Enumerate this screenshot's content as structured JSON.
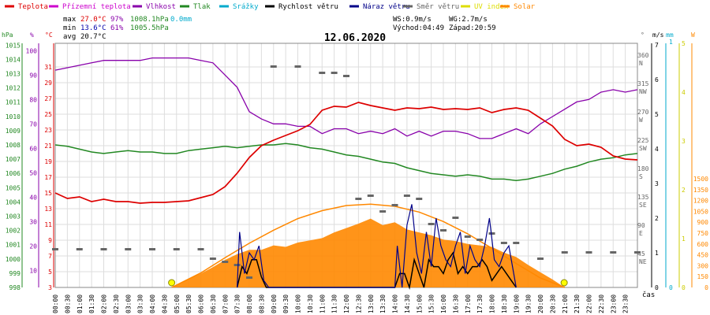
{
  "legend": [
    {
      "label": "Teplota",
      "color": "#dd0000"
    },
    {
      "label": "Přízemní teplota",
      "color": "#cc00cc"
    },
    {
      "label": "Vlhkost",
      "color": "#8800aa"
    },
    {
      "label": "Tlak",
      "color": "#228822"
    },
    {
      "label": "Srážky",
      "color": "#00aacc"
    },
    {
      "label": "Rychlost větru",
      "color": "#000000"
    },
    {
      "label": "Náraz větru",
      "color": "#000088"
    },
    {
      "label": "Směr větru",
      "color": "#666666"
    },
    {
      "label": "UV index",
      "color": "#dddd00"
    },
    {
      "label": "Solar",
      "color": "#ff8800"
    }
  ],
  "stats": {
    "max_label": "max",
    "max_temp": "27.0°C",
    "max_hum": "97%",
    "max_press": "1008.1hPa",
    "max_rain": "0.0mm",
    "min_label": "min",
    "min_temp": "13.6°C",
    "min_hum": "61%",
    "min_press": "1005.5hPa",
    "avg_label": "avg",
    "avg_temp": "20.7°C"
  },
  "wind_info": {
    "ws": "WS:0.9m/s",
    "wg": "WG:2.7m/s",
    "sunrise": "Východ:04:49",
    "sunset": "Západ:20:59"
  },
  "chart_data": {
    "type": "line",
    "title": "12.06.2020",
    "x_label": "čas",
    "x_ticks": [
      "00:00",
      "00:30",
      "01:00",
      "01:30",
      "02:00",
      "02:30",
      "03:00",
      "03:30",
      "04:00",
      "04:30",
      "05:00",
      "05:30",
      "06:00",
      "06:30",
      "07:00",
      "07:30",
      "08:00",
      "08:30",
      "09:00",
      "09:30",
      "10:00",
      "10:30",
      "11:00",
      "11:30",
      "12:00",
      "12:30",
      "13:00",
      "13:30",
      "14:00",
      "14:30",
      "15:00",
      "15:30",
      "16:00",
      "16:30",
      "17:00",
      "17:30",
      "18:00",
      "18:30",
      "19:00",
      "19:30",
      "20:00",
      "20:30",
      "21:00",
      "21:30",
      "22:00",
      "22:30",
      "23:00",
      "23:30"
    ],
    "axes": {
      "pressure": {
        "unit": "hPa",
        "ticks": [
          "998",
          "999",
          "1000",
          "1001",
          "1002",
          "1003",
          "1004",
          "1005",
          "1006",
          "1007",
          "1008",
          "1009",
          "1010",
          "1011",
          "1012",
          "1013",
          "1014",
          "1015"
        ]
      },
      "humidity": {
        "unit": "%",
        "ticks": [
          "10",
          "20",
          "30",
          "40",
          "50",
          "60",
          "70",
          "80",
          "90",
          "100"
        ]
      },
      "temperature": {
        "unit": "°C",
        "ticks": [
          "3",
          "5",
          "7",
          "9",
          "11",
          "13",
          "15",
          "17",
          "19",
          "21",
          "23",
          "25",
          "27",
          "29",
          "31"
        ]
      },
      "wind_dir": {
        "unit": "°",
        "ticks": [
          "45 NE",
          "90 E",
          "135 SE",
          "180 S",
          "225 SW",
          "270 W",
          "315 NW",
          "360 N"
        ]
      },
      "wind_speed": {
        "unit": "m/s",
        "ticks": [
          "0",
          "1",
          "2",
          "3",
          "4",
          "5",
          "6",
          "7"
        ]
      },
      "rain": {
        "unit": "mm",
        "ticks": [
          "0",
          "1"
        ]
      },
      "uv": {
        "ticks": [
          "0",
          "1",
          "2",
          "3",
          "4",
          "5"
        ]
      },
      "solar": {
        "unit": "W",
        "ticks": [
          "0",
          "150",
          "300",
          "450",
          "600",
          "750",
          "900",
          "1050",
          "1200",
          "1350",
          "1500"
        ]
      }
    },
    "series": [
      {
        "name": "Teplota",
        "axis": "temperature",
        "x": [
          0,
          0.5,
          1,
          1.5,
          2,
          2.5,
          3,
          3.5,
          4,
          4.5,
          5,
          5.5,
          6,
          6.5,
          7,
          7.5,
          8,
          8.5,
          9,
          9.5,
          10,
          10.5,
          11,
          11.5,
          12,
          12.5,
          13,
          13.5,
          14,
          14.5,
          15,
          15.5,
          16,
          16.5,
          17,
          17.5,
          18,
          18.5,
          19,
          19.5,
          20,
          20.5,
          21,
          21.5,
          22,
          22.5,
          23,
          23.5,
          24
        ],
        "y": [
          15.0,
          14.3,
          14.5,
          13.9,
          14.2,
          13.9,
          13.9,
          13.7,
          13.8,
          13.8,
          13.9,
          14.0,
          14.4,
          14.8,
          15.8,
          17.5,
          19.5,
          21.0,
          21.7,
          22.3,
          22.9,
          23.7,
          25.5,
          26.0,
          25.9,
          26.5,
          26.1,
          25.8,
          25.5,
          25.8,
          25.7,
          25.9,
          25.6,
          25.7,
          25.6,
          25.8,
          25.2,
          25.6,
          25.8,
          25.5,
          24.5,
          23.5,
          21.8,
          21.0,
          21.2,
          20.8,
          19.7,
          19.3,
          19.2
        ]
      },
      {
        "name": "Vlhkost",
        "axis": "humidity",
        "x": [
          0,
          0.5,
          1,
          1.5,
          2,
          2.5,
          3,
          3.5,
          4,
          4.5,
          5,
          5.5,
          6,
          6.5,
          7,
          7.5,
          8,
          8.5,
          9,
          9.5,
          10,
          10.5,
          11,
          11.5,
          12,
          12.5,
          13,
          13.5,
          14,
          14.5,
          15,
          15.5,
          16,
          16.5,
          17,
          17.5,
          18,
          18.5,
          19,
          19.5,
          20,
          20.5,
          21,
          21.5,
          22,
          22.5,
          23,
          23.5,
          24
        ],
        "y": [
          92,
          93,
          94,
          95,
          96,
          96,
          96,
          96,
          97,
          97,
          97,
          97,
          96,
          95,
          90,
          85,
          75,
          72,
          70,
          70,
          69,
          69,
          66,
          68,
          68,
          66,
          67,
          66,
          68,
          65,
          67,
          65,
          67,
          67,
          66,
          64,
          64,
          66,
          68,
          66,
          70,
          73,
          76,
          79,
          80,
          83,
          84,
          83,
          84
        ]
      },
      {
        "name": "Tlak",
        "axis": "pressure",
        "x": [
          0,
          0.5,
          1,
          1.5,
          2,
          2.5,
          3,
          3.5,
          4,
          4.5,
          5,
          5.5,
          6,
          6.5,
          7,
          7.5,
          8,
          8.5,
          9,
          9.5,
          10,
          10.5,
          11,
          11.5,
          12,
          12.5,
          13,
          13.5,
          14,
          14.5,
          15,
          15.5,
          16,
          16.5,
          17,
          17.5,
          18,
          18.5,
          19,
          19.5,
          20,
          20.5,
          21,
          21.5,
          22,
          22.5,
          23,
          23.5,
          24
        ],
        "y": [
          1008.0,
          1007.9,
          1007.7,
          1007.5,
          1007.4,
          1007.5,
          1007.6,
          1007.5,
          1007.5,
          1007.4,
          1007.4,
          1007.6,
          1007.7,
          1007.8,
          1007.9,
          1007.8,
          1007.9,
          1008.0,
          1008.0,
          1008.1,
          1008.0,
          1007.8,
          1007.7,
          1007.5,
          1007.3,
          1007.2,
          1007.0,
          1006.8,
          1006.7,
          1006.4,
          1006.2,
          1006.0,
          1005.9,
          1005.8,
          1005.9,
          1005.8,
          1005.6,
          1005.6,
          1005.5,
          1005.6,
          1005.8,
          1006.0,
          1006.3,
          1006.5,
          1006.8,
          1007.0,
          1007.1,
          1007.3,
          1007.4
        ]
      },
      {
        "name": "Solar",
        "axis": "solar",
        "x": [
          0,
          4.8,
          5.5,
          6,
          6.5,
          7,
          7.5,
          8,
          8.5,
          9,
          9.5,
          10,
          10.5,
          11,
          11.5,
          12,
          12.5,
          13,
          13.5,
          14,
          14.5,
          15,
          15.5,
          16,
          16.5,
          17,
          17.5,
          18,
          18.5,
          19,
          19.5,
          20,
          20.5,
          21,
          24
        ],
        "y": [
          0,
          0,
          120,
          190,
          280,
          380,
          460,
          520,
          520,
          580,
          560,
          620,
          650,
          680,
          760,
          820,
          880,
          950,
          860,
          900,
          800,
          760,
          720,
          660,
          640,
          600,
          580,
          560,
          480,
          420,
          310,
          210,
          110,
          0,
          0
        ]
      },
      {
        "name": "Solar (teoretický)",
        "axis": "solar",
        "x": [
          4.8,
          6,
          7,
          8,
          9,
          10,
          11,
          12,
          13,
          14,
          15,
          16,
          17,
          18,
          19,
          20,
          21
        ],
        "y": [
          0,
          200,
          410,
          610,
          790,
          950,
          1060,
          1130,
          1150,
          1120,
          1040,
          910,
          740,
          540,
          330,
          130,
          0
        ]
      },
      {
        "name": "Rychlost větru",
        "axis": "wind_speed",
        "x": [
          7.5,
          7.7,
          7.9,
          8.1,
          8.3,
          8.5,
          8.7,
          8.9,
          14.0,
          14.2,
          14.4,
          14.6,
          14.8,
          15.0,
          15.2,
          15.4,
          15.6,
          15.8,
          16.0,
          16.2,
          16.4,
          16.6,
          16.8,
          17.0,
          17.2,
          17.4,
          17.6,
          17.8,
          18.0,
          18.2,
          18.4,
          18.6,
          18.8,
          19.0
        ],
        "y": [
          0,
          0.6,
          0.4,
          0.8,
          0.8,
          0.3,
          0,
          0,
          0,
          0.4,
          0.4,
          0,
          0.8,
          0.4,
          0,
          0.8,
          0.6,
          0.6,
          0.4,
          0.8,
          1.0,
          0.4,
          0.6,
          0.4,
          0.6,
          0.6,
          0.8,
          0.6,
          0.2,
          0.4,
          0.6,
          0.4,
          0.2,
          0
        ]
      },
      {
        "name": "Náraz větru",
        "axis": "wind_speed",
        "x": [
          7.5,
          7.6,
          7.8,
          8.0,
          8.2,
          8.4,
          8.6,
          8.8,
          14.0,
          14.1,
          14.3,
          14.5,
          14.7,
          14.9,
          15.1,
          15.3,
          15.5,
          15.7,
          15.9,
          16.1,
          16.3,
          16.5,
          16.7,
          16.9,
          17.1,
          17.3,
          17.5,
          17.7,
          17.9,
          18.1,
          18.3,
          18.5,
          18.7,
          19.0
        ],
        "y": [
          0,
          1.6,
          0.4,
          1.0,
          0.8,
          1.2,
          0.2,
          0,
          0,
          1.2,
          0,
          1.8,
          2.4,
          1.0,
          0.4,
          1.6,
          0.6,
          2.0,
          1.2,
          0.8,
          0.6,
          1.2,
          1.6,
          0.4,
          1.2,
          0.8,
          0.6,
          1.2,
          2.0,
          0.8,
          0.6,
          1.0,
          1.2,
          0
        ]
      },
      {
        "name": "Směr větru",
        "axis": "wind_dir",
        "type": "scatter",
        "x": [
          0,
          1,
          2,
          3,
          4,
          5,
          6,
          6.5,
          7,
          7.5,
          8,
          9,
          10,
          11,
          11.5,
          12,
          12.5,
          13,
          13.5,
          14,
          14.5,
          15,
          15.5,
          16,
          16.5,
          17,
          17.5,
          18,
          18.5,
          19,
          20,
          21,
          22,
          23,
          24
        ],
        "y": [
          60,
          60,
          60,
          60,
          60,
          60,
          60,
          45,
          40,
          35,
          15,
          350,
          350,
          340,
          340,
          335,
          140,
          145,
          120,
          130,
          145,
          140,
          100,
          90,
          110,
          80,
          75,
          85,
          70,
          70,
          45,
          55,
          55,
          55,
          55
        ]
      }
    ]
  }
}
